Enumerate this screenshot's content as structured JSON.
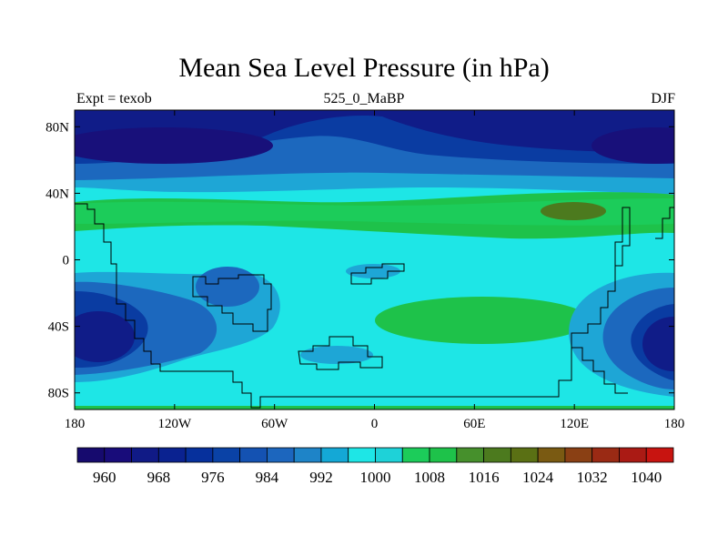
{
  "chart_data": {
    "type": "filled-contour-map",
    "title": "Mean Sea Level Pressure (in hPa)",
    "left_label": "Expt = texob",
    "center_label": "525_0_MaBP",
    "right_label": "DJF",
    "x_ticks": [
      "180",
      "120W",
      "60W",
      "0",
      "60E",
      "120E",
      "180"
    ],
    "x_values": [
      -180,
      -120,
      -60,
      0,
      60,
      120,
      180
    ],
    "y_ticks": [
      "80N",
      "40N",
      "0",
      "40S",
      "80S"
    ],
    "y_values": [
      80,
      40,
      0,
      -40,
      -80
    ],
    "xlim": [
      -180,
      180
    ],
    "ylim": [
      -90,
      90
    ],
    "colorbar": {
      "labels": [
        "960",
        "968",
        "976",
        "984",
        "992",
        "1000",
        "1008",
        "1016",
        "1024",
        "1032",
        "1040"
      ],
      "label_values": [
        960,
        968,
        976,
        984,
        992,
        1000,
        1008,
        1016,
        1024,
        1032,
        1040
      ],
      "levels": [
        956,
        960,
        964,
        968,
        972,
        976,
        980,
        984,
        988,
        992,
        996,
        1000,
        1004,
        1008,
        1012,
        1016,
        1020,
        1024,
        1028,
        1032,
        1036,
        1040,
        1044
      ],
      "colors": [
        "#160a6e",
        "#180c7a",
        "#101a86",
        "#0a2290",
        "#06309c",
        "#0a42a6",
        "#1452b2",
        "#1c66be",
        "#1e84c8",
        "#14a8d6",
        "#1ee6e6",
        "#1ed2d8",
        "#1ccc5a",
        "#1ec24a",
        "#46902c",
        "#4c7a1e",
        "#5a7014",
        "#7a5a12",
        "#8a4014",
        "#9a2a14",
        "#aa1a14",
        "#c81410"
      ]
    },
    "regions": [
      {
        "name": "north-polar-low",
        "value": 962,
        "center": [
          0,
          78
        ]
      },
      {
        "name": "tropical-high-band",
        "value": 1008,
        "center": [
          0,
          40
        ]
      },
      {
        "name": "asian-high-core",
        "value": 1014,
        "center": [
          120,
          32
        ]
      },
      {
        "name": "south-atlantic-high",
        "value": 1008,
        "center": [
          45,
          -30
        ]
      },
      {
        "name": "southern-low-west",
        "value": 968,
        "center": [
          -165,
          -50
        ]
      },
      {
        "name": "southern-low-east",
        "value": 968,
        "center": [
          150,
          -50
        ]
      }
    ]
  }
}
